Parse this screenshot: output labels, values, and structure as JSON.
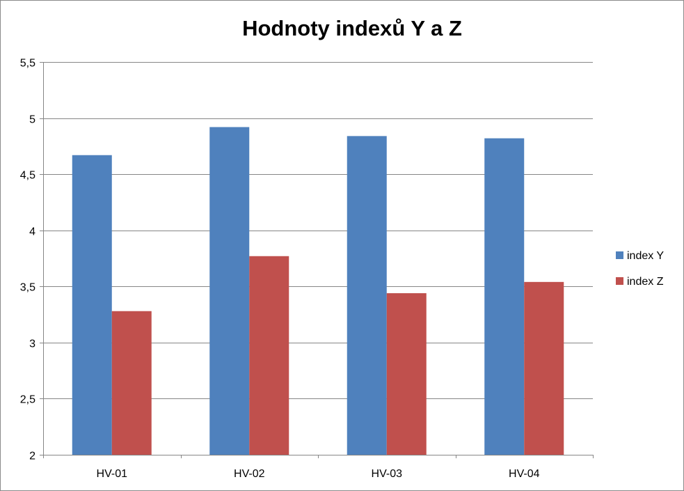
{
  "chart_data": {
    "type": "bar",
    "title": "Hodnoty indexů  Y a Z",
    "xlabel": "",
    "ylabel": "",
    "categories": [
      "HV-01",
      "HV-02",
      "HV-03",
      "HV-04"
    ],
    "series": [
      {
        "name": "index Y",
        "values": [
          4.67,
          4.92,
          4.84,
          4.82
        ],
        "color": "#4f81bd"
      },
      {
        "name": "index Z",
        "values": [
          3.28,
          3.77,
          3.44,
          3.54
        ],
        "color": "#c0504d"
      }
    ],
    "ylim": [
      2,
      5.5
    ],
    "y_ticks": [
      "2",
      "2,5",
      "3",
      "3,5",
      "4",
      "4,5",
      "5",
      "5,5"
    ],
    "y_tick_values": [
      2,
      2.5,
      3,
      3.5,
      4,
      4.5,
      5,
      5.5
    ],
    "grid": true,
    "legend_position": "right"
  }
}
